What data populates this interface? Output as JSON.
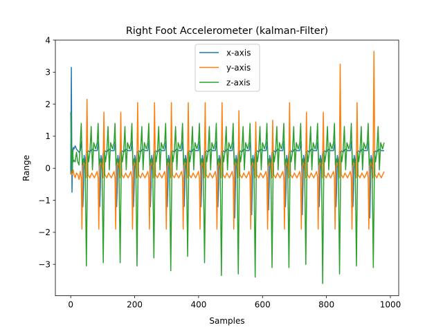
{
  "chart_data": {
    "type": "line",
    "title": "Right Foot Accelerometer (kalman-Filter)",
    "xlabel": "Samples",
    "ylabel": "Range",
    "xlim": [
      -48,
      1026
    ],
    "ylim": [
      -3.98,
      4.0
    ],
    "x_ticks": [
      0,
      200,
      400,
      600,
      800,
      1000
    ],
    "y_ticks": [
      -3,
      -2,
      -1,
      0,
      1,
      2,
      3,
      4
    ],
    "x_tick_labels": [
      "0",
      "200",
      "400",
      "600",
      "800",
      "1000"
    ],
    "y_tick_labels": [
      "−3",
      "−2",
      "−1",
      "0",
      "1",
      "2",
      "3",
      "4"
    ],
    "grid": false,
    "legend_position": "top-center",
    "cycle": {
      "start": 30,
      "period": 52.8,
      "count": 18
    },
    "series": [
      {
        "name": "x-axis",
        "color": "#1f77b4",
        "x": [
          0,
          2,
          4,
          6,
          8,
          10,
          14,
          18,
          22,
          26,
          30
        ],
        "y": [
          -0.2,
          3.15,
          -0.75,
          0.35,
          0.65,
          0.6,
          0.7,
          0.6,
          0.55,
          0.5,
          0.55
        ],
        "cycle_template": [
          [
            0,
            0.55
          ],
          [
            4,
            0.85
          ],
          [
            6,
            0.3
          ],
          [
            8,
            -1.2
          ],
          [
            10,
            -0.6
          ],
          [
            12,
            0.4
          ],
          [
            15,
            0.1
          ],
          [
            19,
            0.5
          ],
          [
            24,
            0.55
          ],
          [
            30,
            0.5
          ],
          [
            36,
            0.6
          ],
          [
            44,
            0.55
          ],
          [
            52.8,
            0.55
          ]
        ],
        "dip_overrides": {
          "9": -1.55,
          "10": -1.45,
          "11": -1.3,
          "13": -1.45,
          "17": -1.55
        }
      },
      {
        "name": "y-axis",
        "color": "#ff7f0e",
        "x": [
          0,
          2,
          4,
          6,
          8,
          10,
          14,
          18,
          22,
          26,
          30
        ],
        "y": [
          -0.2,
          -0.1,
          -0.2,
          -0.1,
          -0.05,
          -0.2,
          -0.3,
          -0.15,
          -0.2,
          -0.35,
          -0.1
        ],
        "cycle_template": [
          [
            0,
            -0.1
          ],
          [
            3,
            -0.3
          ],
          [
            5,
            -1.9
          ],
          [
            8,
            0.2
          ],
          [
            12,
            0.15
          ],
          [
            15,
            0.0
          ],
          [
            18,
            -0.3
          ],
          [
            21,
            2.15
          ],
          [
            24,
            -0.2
          ],
          [
            30,
            -0.3
          ],
          [
            36,
            -0.15
          ],
          [
            44,
            -0.3
          ],
          [
            52.8,
            -0.1
          ]
        ],
        "peaks": [
          2.15,
          1.75,
          1.75,
          2.05,
          2.05,
          2.05,
          2.05,
          2.05,
          2.05,
          1.8,
          1.45,
          1.5,
          2.05,
          1.75,
          1.75,
          3.25,
          2.05,
          3.65
        ]
      },
      {
        "name": "z-axis",
        "color": "#2ca02c",
        "x": [
          0,
          2,
          4,
          6,
          8,
          10,
          14,
          18,
          22,
          26,
          30
        ],
        "y": [
          1.75,
          0.5,
          -0.15,
          0.6,
          0.2,
          0.25,
          0.2,
          0.5,
          0.2,
          0.1,
          0.8
        ],
        "cycle_template": [
          [
            0,
            0.8
          ],
          [
            3,
            1.4
          ],
          [
            6,
            0.1
          ],
          [
            10,
            0.3
          ],
          [
            15,
            0.2
          ],
          [
            19,
            -3.05
          ],
          [
            23,
            0.5
          ],
          [
            26,
            0.2
          ],
          [
            30,
            0.5
          ],
          [
            34,
            1.3
          ],
          [
            38,
            -0.05
          ],
          [
            42,
            0.8
          ],
          [
            48,
            0.6
          ],
          [
            52.8,
            0.8
          ]
        ],
        "troughs": [
          -3.05,
          -2.95,
          -2.95,
          -3.05,
          -2.8,
          -3.2,
          -2.75,
          -2.95,
          -3.35,
          -3.3,
          -3.4,
          -3.1,
          -3.1,
          -3.0,
          -3.6,
          -3.3,
          -3.05,
          -3.1
        ]
      }
    ]
  }
}
